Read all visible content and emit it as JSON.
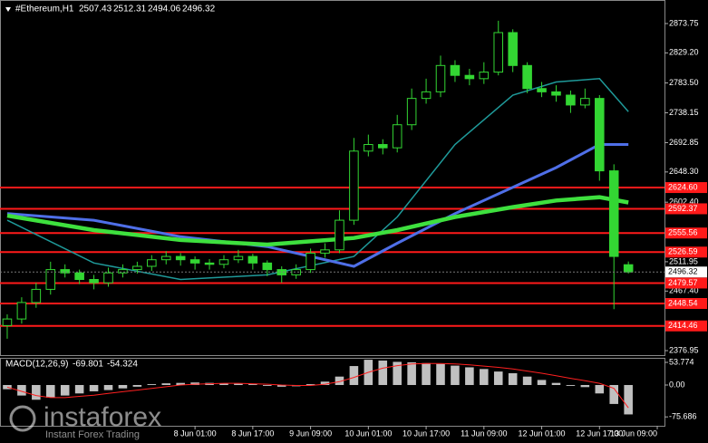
{
  "chart_data": [
    {
      "type": "candlestick",
      "title": "#Ethereum,H1",
      "color": "#33d633",
      "open": [
        2415,
        2425,
        2450,
        2470,
        2500,
        2495,
        2485,
        2480,
        2495,
        2500,
        2505,
        2515,
        2520,
        2515,
        2510,
        2508,
        2515,
        2520,
        2510,
        2500,
        2492,
        2500,
        2525,
        2530,
        2575,
        2680,
        2690,
        2685,
        2720,
        2760,
        2770,
        2810,
        2795,
        2790,
        2800,
        2860,
        2810,
        2775,
        2770,
        2765,
        2750,
        2760,
        2650,
        2507.43
      ],
      "high": [
        2432,
        2458,
        2480,
        2512,
        2508,
        2500,
        2492,
        2503,
        2508,
        2512,
        2522,
        2528,
        2525,
        2520,
        2516,
        2522,
        2530,
        2524,
        2514,
        2505,
        2508,
        2532,
        2540,
        2590,
        2700,
        2705,
        2698,
        2735,
        2775,
        2790,
        2825,
        2818,
        2805,
        2815,
        2878,
        2865,
        2815,
        2785,
        2780,
        2772,
        2775,
        2765,
        2660,
        2512.31
      ],
      "low": [
        2395,
        2418,
        2442,
        2462,
        2488,
        2478,
        2470,
        2474,
        2488,
        2494,
        2498,
        2508,
        2506,
        2500,
        2500,
        2502,
        2510,
        2500,
        2490,
        2480,
        2486,
        2495,
        2518,
        2525,
        2568,
        2672,
        2675,
        2678,
        2712,
        2752,
        2762,
        2785,
        2780,
        2782,
        2795,
        2800,
        2768,
        2762,
        2755,
        2738,
        2745,
        2635,
        2440,
        2494.06
      ],
      "close": [
        2425,
        2450,
        2470,
        2500,
        2495,
        2485,
        2480,
        2495,
        2500,
        2505,
        2515,
        2520,
        2515,
        2510,
        2508,
        2515,
        2520,
        2510,
        2500,
        2492,
        2500,
        2525,
        2530,
        2575,
        2680,
        2690,
        2685,
        2720,
        2760,
        2770,
        2810,
        2795,
        2790,
        2800,
        2860,
        2810,
        2775,
        2770,
        2765,
        2750,
        2760,
        2650,
        2520,
        2496.32
      ],
      "moving_averages": [
        {
          "color": "#1f9a9a",
          "width": 1.5,
          "x": [
            0,
            6,
            12,
            18,
            24,
            27,
            31,
            35,
            38,
            41,
            43
          ],
          "values": [
            2575,
            2510,
            2485,
            2492,
            2520,
            2580,
            2690,
            2765,
            2785,
            2790,
            2740
          ]
        },
        {
          "color": "#4f6fe8",
          "width": 3,
          "x": [
            0,
            6,
            12,
            18,
            24,
            27,
            31,
            35,
            38,
            41,
            43
          ],
          "values": [
            2585,
            2575,
            2550,
            2535,
            2505,
            2540,
            2585,
            2625,
            2655,
            2690,
            2690
          ]
        },
        {
          "color": "#3ee03e",
          "width": 4.5,
          "x": [
            0,
            6,
            12,
            18,
            24,
            27,
            31,
            35,
            38,
            41,
            43
          ],
          "values": [
            2582,
            2560,
            2545,
            2538,
            2548,
            2560,
            2580,
            2595,
            2605,
            2610,
            2602
          ]
        }
      ],
      "levels": [
        {
          "value": 2624.6,
          "label": "2624.60"
        },
        2592.37,
        2555.56,
        2526.59,
        2479.57,
        2448.54,
        2414.46
      ],
      "level_color": "#ff1a1a",
      "xlim": [
        -0.5,
        45.5
      ],
      "ylim": [
        2370.1,
        2909.5
      ],
      "yticks": [
        2873.75,
        {
          "value": 2829.2,
          "label": "2829.20"
        },
        {
          "value": 2783.5,
          "label": "2783.50"
        },
        2738.15,
        2692.85,
        {
          "value": 2648.3,
          "label": "2648.30"
        },
        {
          "value": 2602.4,
          "label": "2602.40"
        },
        2511.95,
        {
          "value": 2467.4,
          "label": "2467.40"
        },
        2376.95
      ],
      "xticks": [
        {
          "value": 13,
          "label": "8 Jun 01:00"
        },
        {
          "value": 17,
          "label": "8 Jun 17:00"
        },
        {
          "value": 21,
          "label": "9 Jun 09:00"
        },
        {
          "value": 25,
          "label": "10 Jun 01:00"
        },
        {
          "value": 29,
          "label": "10 Jun 17:00"
        },
        {
          "value": 33,
          "label": "11 Jun 09:00"
        },
        {
          "value": 37,
          "label": "12 Jun 01:00"
        },
        {
          "value": 41,
          "label": "12 Jun 17:00"
        },
        {
          "value": 45,
          "label": "13 Jun 09:00"
        }
      ]
    },
    {
      "type": "macd",
      "title": "MACD(12,26,9)",
      "series": [
        {
          "color": "#c0c0c0",
          "values": [
            -10,
            -25,
            -35,
            -30,
            -25,
            -20,
            -15,
            -12,
            -8,
            -4,
            2,
            4,
            5,
            6,
            5,
            4,
            3,
            2,
            -2,
            -4,
            -3,
            2,
            8,
            20,
            45,
            60,
            58,
            55,
            54,
            52,
            50,
            46,
            42,
            38,
            32,
            28,
            20,
            12,
            5,
            -2,
            -5,
            -20,
            -45,
            -69.801
          ]
        },
        {
          "color": "#ff2020",
          "values": [
            -5,
            -15,
            -25,
            -30,
            -30,
            -27,
            -24,
            -20,
            -16,
            -12,
            -8,
            -4,
            0,
            2,
            3,
            4,
            4,
            3,
            2,
            0,
            -1,
            -1,
            2,
            8,
            18,
            30,
            40,
            46,
            50,
            51,
            51,
            50,
            48,
            45,
            42,
            38,
            33,
            28,
            22,
            16,
            10,
            4,
            -8,
            -54.324
          ]
        }
      ],
      "xlim": [
        -0.5,
        45.5
      ],
      "ylim": [
        -96.8,
        64.5
      ],
      "yticks": [
        53.774,
        {
          "value": 0,
          "label": "0.00"
        },
        -75.686
      ]
    }
  ],
  "watermark": {
    "brand": "instaforex",
    "tagline": "Instant Forex Trading"
  }
}
